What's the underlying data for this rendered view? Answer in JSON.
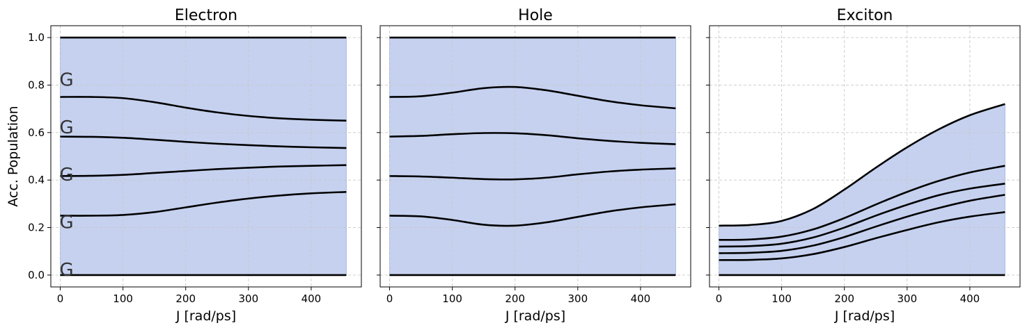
{
  "colors": {
    "fill": "#c5d1ef",
    "fill_edge": "#a9b9e6",
    "line": "#000000"
  },
  "chart_data": [
    {
      "type": "area",
      "title": "Electron",
      "xlabel": "J [rad/ps]",
      "ylabel": "Acc. Population",
      "xlim": [
        -15,
        480
      ],
      "ylim": [
        -0.05,
        1.05
      ],
      "xticks": [
        0,
        100,
        200,
        300,
        400
      ],
      "yticks": [
        0.0,
        0.2,
        0.4,
        0.6,
        0.8,
        1.0
      ],
      "ytick_labels": [
        "0.0",
        "0.2",
        "0.4",
        "0.6",
        "0.8",
        "1.0"
      ],
      "grid": true,
      "x": [
        0,
        50,
        100,
        150,
        200,
        250,
        300,
        350,
        400,
        456
      ],
      "series": [
        {
          "values": [
            0,
            0,
            0,
            0,
            0,
            0,
            0,
            0,
            0,
            0
          ]
        },
        {
          "values": [
            0.25,
            0.25,
            0.253,
            0.265,
            0.285,
            0.305,
            0.322,
            0.335,
            0.344,
            0.35
          ]
        },
        {
          "values": [
            0.417,
            0.418,
            0.422,
            0.43,
            0.438,
            0.446,
            0.452,
            0.457,
            0.46,
            0.463
          ]
        },
        {
          "values": [
            0.583,
            0.582,
            0.578,
            0.57,
            0.561,
            0.553,
            0.547,
            0.542,
            0.538,
            0.535
          ]
        },
        {
          "values": [
            0.75,
            0.75,
            0.745,
            0.728,
            0.705,
            0.685,
            0.67,
            0.66,
            0.654,
            0.65
          ]
        },
        {
          "values": [
            1,
            1,
            1,
            1,
            1,
            1,
            1,
            1,
            1,
            1
          ]
        }
      ],
      "annotations": [
        {
          "text": "G",
          "y": 0.0
        },
        {
          "text": "G",
          "y": 0.2
        },
        {
          "text": "G",
          "y": 0.4
        },
        {
          "text": "G",
          "y": 0.6
        },
        {
          "text": "G",
          "y": 0.8
        }
      ]
    },
    {
      "type": "area",
      "title": "Hole",
      "xlabel": "J [rad/ps]",
      "xlim": [
        -15,
        480
      ],
      "ylim": [
        -0.05,
        1.05
      ],
      "xticks": [
        0,
        100,
        200,
        300,
        400
      ],
      "yticks": [
        0.0,
        0.2,
        0.4,
        0.6,
        0.8,
        1.0
      ],
      "grid": true,
      "x": [
        0,
        50,
        100,
        150,
        200,
        250,
        300,
        350,
        400,
        456
      ],
      "series": [
        {
          "values": [
            0,
            0,
            0,
            0,
            0,
            0,
            0,
            0,
            0,
            0
          ]
        },
        {
          "values": [
            0.25,
            0.247,
            0.232,
            0.212,
            0.208,
            0.222,
            0.245,
            0.268,
            0.285,
            0.298
          ]
        },
        {
          "values": [
            0.417,
            0.415,
            0.41,
            0.404,
            0.403,
            0.41,
            0.424,
            0.436,
            0.444,
            0.449
          ]
        },
        {
          "values": [
            0.583,
            0.586,
            0.593,
            0.598,
            0.597,
            0.589,
            0.576,
            0.565,
            0.557,
            0.551
          ]
        },
        {
          "values": [
            0.75,
            0.753,
            0.768,
            0.787,
            0.792,
            0.778,
            0.755,
            0.732,
            0.715,
            0.702
          ]
        },
        {
          "values": [
            1,
            1,
            1,
            1,
            1,
            1,
            1,
            1,
            1,
            1
          ]
        }
      ]
    },
    {
      "type": "area",
      "title": "Exciton",
      "xlabel": "J [rad/ps]",
      "xlim": [
        -15,
        480
      ],
      "ylim": [
        -0.05,
        1.05
      ],
      "xticks": [
        0,
        100,
        200,
        300,
        400
      ],
      "yticks": [
        0.0,
        0.2,
        0.4,
        0.6,
        0.8,
        1.0
      ],
      "grid": true,
      "x": [
        0,
        50,
        100,
        150,
        200,
        250,
        300,
        350,
        400,
        456
      ],
      "series": [
        {
          "values": [
            0,
            0,
            0,
            0,
            0,
            0,
            0,
            0,
            0,
            0
          ]
        },
        {
          "values": [
            0.063,
            0.064,
            0.07,
            0.088,
            0.118,
            0.155,
            0.19,
            0.222,
            0.246,
            0.265
          ]
        },
        {
          "values": [
            0.092,
            0.094,
            0.102,
            0.124,
            0.16,
            0.204,
            0.246,
            0.282,
            0.313,
            0.338
          ]
        },
        {
          "values": [
            0.12,
            0.122,
            0.132,
            0.158,
            0.2,
            0.25,
            0.296,
            0.336,
            0.364,
            0.385
          ]
        },
        {
          "values": [
            0.148,
            0.15,
            0.162,
            0.192,
            0.24,
            0.297,
            0.35,
            0.396,
            0.432,
            0.46
          ]
        },
        {
          "values": [
            0.208,
            0.211,
            0.228,
            0.278,
            0.36,
            0.452,
            0.538,
            0.613,
            0.673,
            0.72
          ]
        }
      ]
    }
  ]
}
